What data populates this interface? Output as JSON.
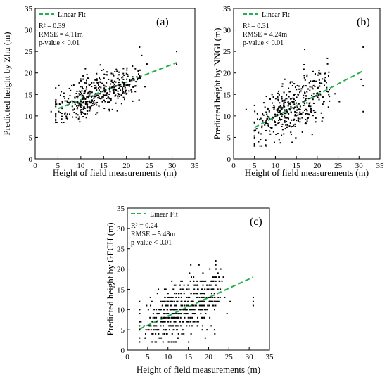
{
  "chart_data": [
    {
      "type": "scatter",
      "panel_label": "(a)",
      "xlabel": "Height  of  field  measurements (m)",
      "ylabel": "Predicted  height  by  Zhu (m)",
      "xlim": [
        0,
        35
      ],
      "ylim": [
        0,
        35
      ],
      "xticks": [
        "0",
        "5",
        "10",
        "15",
        "20",
        "25",
        "30",
        "35"
      ],
      "yticks": [
        "0",
        "5",
        "10",
        "15",
        "20",
        "25",
        "30",
        "35"
      ],
      "legend": {
        "label": "Linear Fit",
        "position": "top-left",
        "color": "#22b14c"
      },
      "stats": [
        "R² = 0.39",
        "RMSE = 4.11m",
        "p-value < 0.01"
      ],
      "fit": {
        "x": [
          5,
          31
        ],
        "y": [
          11.7,
          22.4
        ]
      },
      "seed": 11,
      "n": 420,
      "scatter_model": {
        "x_center": 12.3,
        "x_spread": 4.2,
        "x_min": 4.5,
        "x_max": 31,
        "slope": 0.41,
        "intercept": 9.6,
        "noise": 2.3,
        "y_min": 8.5,
        "y_max": 26
      },
      "extra_points": [
        [
          31,
          25
        ],
        [
          31,
          22
        ],
        [
          3.5,
          11
        ],
        [
          16,
          14.5
        ],
        [
          11,
          21
        ]
      ]
    },
    {
      "type": "scatter",
      "panel_label": "(b)",
      "xlabel": "Height  of  field  measurements (m)",
      "ylabel": "Predicted  height  by  NNGI (m)",
      "xlim": [
        0,
        35
      ],
      "ylim": [
        0,
        35
      ],
      "xticks": [
        "0",
        "5",
        "10",
        "15",
        "20",
        "25",
        "30",
        "35"
      ],
      "yticks": [
        "0",
        "5",
        "10",
        "15",
        "20",
        "25",
        "30",
        "35"
      ],
      "legend": {
        "label": "Linear Fit",
        "position": "top-left",
        "color": "#22b14c"
      },
      "stats": [
        "R² = 0.31",
        "RMSE = 4.24m",
        "p-value < 0.01"
      ],
      "fit": {
        "x": [
          5,
          31
        ],
        "y": [
          7.3,
          20.5
        ]
      },
      "seed": 29,
      "n": 400,
      "scatter_model": {
        "x_center": 12.8,
        "x_spread": 4.4,
        "x_min": 5,
        "x_max": 31,
        "slope": 0.51,
        "intercept": 4.8,
        "noise": 3.3,
        "y_min": 3,
        "y_max": 26
      },
      "extra_points": [
        [
          31,
          17
        ],
        [
          31,
          11
        ],
        [
          30.5,
          18.5
        ],
        [
          3,
          11.5
        ],
        [
          5,
          3
        ],
        [
          17,
          25.5
        ]
      ]
    },
    {
      "type": "scatter",
      "panel_label": "(c)",
      "xlabel": "Height  of  field  measurements (m)",
      "ylabel": "Predicted  height  by  GFCH (m)",
      "xlim": [
        0,
        35
      ],
      "ylim": [
        0,
        35
      ],
      "xticks": [
        "0",
        "5",
        "10",
        "15",
        "20",
        "25",
        "30",
        "35"
      ],
      "yticks": [
        "0",
        "5",
        "10",
        "15",
        "20",
        "25",
        "30",
        "35"
      ],
      "legend": {
        "label": "Linear Fit",
        "position": "top-left",
        "color": "#22b14c"
      },
      "stats": [
        "R² = 0.24",
        "RMSE = 5.48m",
        "p-value < 0.01"
      ],
      "fit": {
        "x": [
          3,
          31
        ],
        "y": [
          5.2,
          18
        ]
      },
      "seed": 53,
      "n": 470,
      "scatter_model": {
        "x_center": 12.5,
        "x_spread": 4.6,
        "x_min": 3,
        "x_max": 26,
        "slope": 0.46,
        "intercept": 4.0,
        "noise": 3.6,
        "y_min": 2,
        "y_max": 22,
        "quantize": 1
      },
      "extra_points": [
        [
          31,
          13
        ],
        [
          31,
          12
        ],
        [
          31,
          11
        ],
        [
          3,
          7
        ]
      ]
    }
  ]
}
